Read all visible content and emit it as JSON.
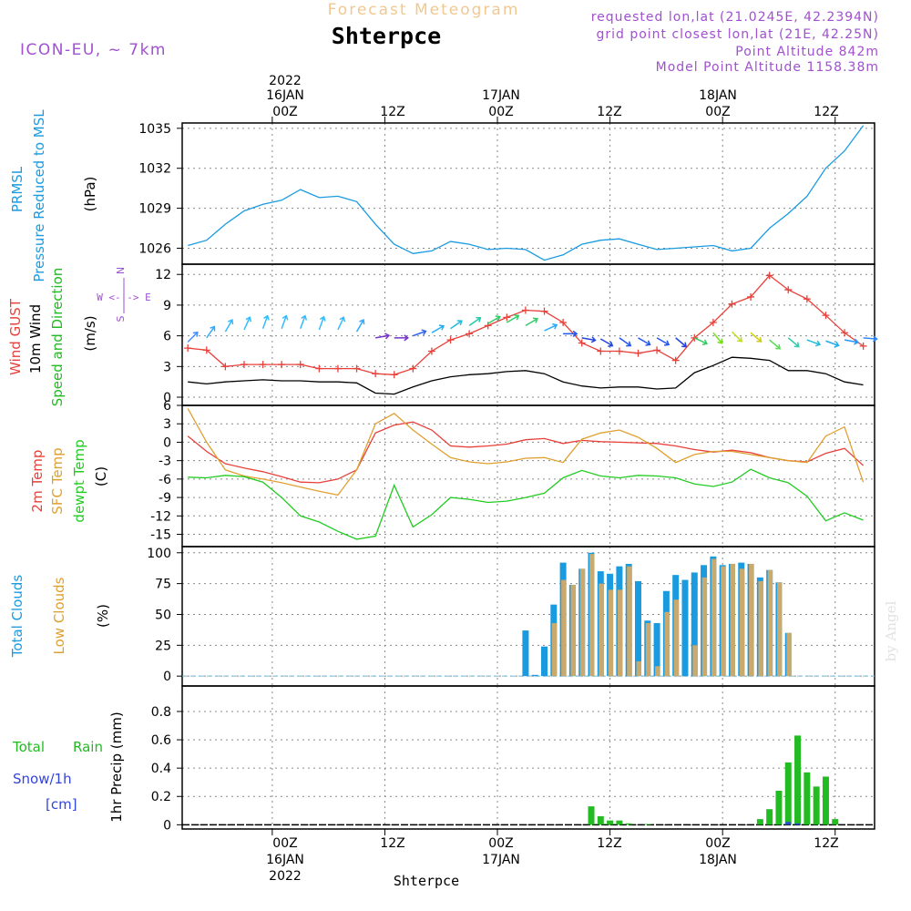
{
  "header": {
    "title": "Forecast Meteogram",
    "location": "Shterpce",
    "model": "ICON-EU, ~ 7km",
    "requested": "requested lon,lat (21.0245E, 42.2394N)",
    "grid_point": "grid point closest lon,lat (21E, 42.25N)",
    "point_altitude": "Point Altitude 842m",
    "model_altitude": "Model Point Altitude 1158.38m",
    "watermark": "by Angel",
    "footer_location": "Shterpce"
  },
  "time_axis": {
    "top_year": "2022",
    "ticks": [
      {
        "line1": "16JAN",
        "line2": "00Z"
      },
      {
        "line1": "",
        "line2": "12Z"
      },
      {
        "line1": "17JAN",
        "line2": "00Z"
      },
      {
        "line1": "",
        "line2": "12Z"
      },
      {
        "line1": "18JAN",
        "line2": "00Z"
      },
      {
        "line1": "",
        "line2": "12Z"
      }
    ],
    "bottom_ticks": [
      {
        "line1": "00Z",
        "line2": "16JAN",
        "line3": "2022"
      },
      {
        "line1": "12Z",
        "line2": "",
        "line3": ""
      },
      {
        "line1": "00Z",
        "line2": "17JAN",
        "line3": ""
      },
      {
        "line1": "12Z",
        "line2": "",
        "line3": ""
      },
      {
        "line1": "00Z",
        "line2": "18JAN",
        "line3": ""
      },
      {
        "line1": "12Z",
        "line2": "",
        "line3": ""
      }
    ]
  },
  "labels": {
    "p1": {
      "a": "PRMSL",
      "b": "Pressure Reduced to MSL",
      "unit": "(hPa)"
    },
    "p2": {
      "a": "Wind GUST",
      "b": "10m Wind",
      "c": "Speed and Direction",
      "unit": "(m/s)",
      "compass_n": "N",
      "compass_s": "S",
      "compass_we": "W <-|-> E"
    },
    "p3": {
      "a": "2m Temp",
      "b": "SFC Temp",
      "c": "dewpt Temp",
      "unit": "(C)"
    },
    "p4": {
      "a": "Total Clouds",
      "b": "Low Clouds",
      "unit": "(%)"
    },
    "p5": {
      "a": "Total",
      "b": "Rain",
      "c": "Snow/1h",
      "d": "[cm]",
      "unit": "1hr Precip (mm)"
    }
  },
  "colors": {
    "pressure": "#1a9be0",
    "gust": "#e8403a",
    "wind": "#000000",
    "t2m": "#e8403a",
    "tsfc": "#e0a030",
    "dewpt": "#22cc22",
    "total_clouds": "#1a9be0",
    "low_clouds": "#c8aa6e",
    "rain": "#22bb22",
    "snow": "#3344dd",
    "title": "#f0c890",
    "info": "#a050d0"
  },
  "chart_data": [
    {
      "type": "line",
      "title": "PRMSL Pressure Reduced to MSL",
      "ylabel": "(hPa)",
      "ylim": [
        1024.8,
        1035.4
      ],
      "yticks": [
        1026,
        1029,
        1032,
        1035
      ],
      "x_hours": [
        -9,
        -7,
        -5,
        -3,
        -1,
        1,
        3,
        5,
        7,
        9,
        11,
        13,
        15,
        17,
        19,
        21,
        23,
        25,
        27,
        29,
        31,
        33,
        35,
        37,
        39,
        41,
        43,
        45,
        47,
        49,
        51,
        53,
        55,
        57,
        59,
        61,
        63
      ],
      "series": [
        {
          "name": "PRMSL",
          "values": [
            1026.2,
            1026.6,
            1027.8,
            1028.8,
            1029.3,
            1029.6,
            1030.4,
            1029.8,
            1029.9,
            1029.5,
            1027.8,
            1026.3,
            1025.6,
            1025.8,
            1026.5,
            1026.3,
            1025.9,
            1026.0,
            1025.9,
            1025.1,
            1025.5,
            1026.3,
            1026.6,
            1026.7,
            1026.3,
            1025.9,
            1026.0,
            1026.1,
            1026.2,
            1025.8,
            1026.0,
            1027.5,
            1028.6,
            1029.9,
            1032.0,
            1033.3,
            1035.2
          ]
        }
      ]
    },
    {
      "type": "line",
      "title": "Wind GUST / 10m Wind Speed and Direction",
      "ylabel": "(m/s)",
      "ylim": [
        -0.8,
        13
      ],
      "yticks": [
        0,
        3,
        6,
        9,
        12
      ],
      "x_hours": [
        -9,
        -7,
        -5,
        -3,
        -1,
        1,
        3,
        5,
        7,
        9,
        11,
        13,
        15,
        17,
        19,
        21,
        23,
        25,
        27,
        29,
        31,
        33,
        35,
        37,
        39,
        41,
        43,
        45,
        47,
        49,
        51,
        53,
        55,
        57,
        59,
        61,
        63
      ],
      "series": [
        {
          "name": "Wind GUST",
          "values": [
            4.8,
            4.6,
            3.0,
            3.2,
            3.2,
            3.2,
            3.2,
            2.8,
            2.8,
            2.8,
            2.3,
            2.2,
            2.8,
            4.5,
            5.6,
            6.2,
            7.0,
            7.8,
            8.5,
            8.4,
            7.3,
            5.3,
            4.5,
            4.5,
            4.3,
            4.6,
            3.6,
            5.8,
            7.3,
            9.1,
            9.8,
            11.9,
            10.5,
            9.6,
            8.0,
            6.3,
            5.0
          ]
        },
        {
          "name": "10m Wind",
          "values": [
            1.5,
            1.3,
            1.5,
            1.6,
            1.7,
            1.6,
            1.6,
            1.5,
            1.5,
            1.4,
            0.4,
            0.3,
            1.0,
            1.6,
            2.0,
            2.2,
            2.3,
            2.5,
            2.6,
            2.3,
            1.5,
            1.1,
            0.9,
            1.0,
            1.0,
            0.8,
            0.9,
            2.4,
            3.1,
            3.9,
            3.8,
            3.6,
            2.6,
            2.6,
            2.3,
            1.5,
            1.2
          ]
        }
      ],
      "wind_arrows": {
        "hours": [
          -9,
          -7,
          -5,
          -3,
          -1,
          1,
          3,
          5,
          7,
          9,
          11,
          13,
          15,
          17,
          19,
          21,
          23,
          25,
          27,
          29,
          31,
          33,
          35,
          37,
          39,
          41,
          43,
          45,
          47,
          49,
          51,
          53,
          55,
          57,
          59,
          61,
          63
        ],
        "speed": [
          5.4,
          5.8,
          6.4,
          6.6,
          6.7,
          6.7,
          6.7,
          6.6,
          6.6,
          6.4,
          5.8,
          5.8,
          6.0,
          6.3,
          6.7,
          7.0,
          7.2,
          7.3,
          7.0,
          6.5,
          6.2,
          5.8,
          5.7,
          5.8,
          5.8,
          5.8,
          5.8,
          5.8,
          6.3,
          6.4,
          6.3,
          5.6,
          5.8,
          5.6,
          5.5,
          5.6,
          5.8
        ],
        "direction_deg": [
          225,
          215,
          210,
          205,
          200,
          200,
          200,
          200,
          205,
          210,
          260,
          270,
          250,
          240,
          235,
          235,
          240,
          240,
          240,
          245,
          270,
          280,
          300,
          305,
          300,
          300,
          310,
          295,
          320,
          315,
          310,
          310,
          310,
          290,
          290,
          280,
          275
        ],
        "colors": [
          "#4a8cff",
          "#33aaff",
          "#33bbff",
          "#33bbff",
          "#33bbff",
          "#33bbff",
          "#33bbff",
          "#33bbff",
          "#33bbff",
          "#33aaff",
          "#7733cc",
          "#7733cc",
          "#3366ee",
          "#22aaff",
          "#22bbdd",
          "#22ccaa",
          "#33cc66",
          "#33cc66",
          "#33cc66",
          "#22aaff",
          "#2255ee",
          "#2244dd",
          "#2244dd",
          "#2255ee",
          "#2255ee",
          "#2255ee",
          "#2244dd",
          "#33cc66",
          "#77dd22",
          "#bbdd22",
          "#cccc11",
          "#55dd55",
          "#33ccaa",
          "#22bbdd",
          "#22aaee",
          "#2299ff",
          "#3388ff"
        ]
      }
    },
    {
      "type": "line",
      "title": "2m Temp / SFC Temp / dewpt Temp",
      "ylabel": "(C)",
      "ylim": [
        -17,
        6
      ],
      "yticks": [
        6,
        3,
        0,
        -3,
        -6,
        -9,
        -12,
        -15
      ],
      "x_hours": [
        -9,
        -7,
        -5,
        -3,
        -1,
        1,
        3,
        5,
        7,
        9,
        11,
        13,
        15,
        17,
        19,
        21,
        23,
        25,
        27,
        29,
        31,
        33,
        35,
        37,
        39,
        41,
        43,
        45,
        47,
        49,
        51,
        53,
        55,
        57,
        59,
        61,
        63
      ],
      "series": [
        {
          "name": "2m Temp",
          "values": [
            1.0,
            -1.5,
            -3.5,
            -4.2,
            -4.8,
            -5.6,
            -6.5,
            -6.6,
            -6.0,
            -4.5,
            1.5,
            2.8,
            3.3,
            2.0,
            -0.6,
            -0.8,
            -0.6,
            -0.3,
            0.4,
            0.6,
            -0.2,
            0.3,
            0.1,
            0.0,
            -0.1,
            -0.2,
            -0.6,
            -1.2,
            -1.6,
            -1.3,
            -1.7,
            -2.5,
            -3.0,
            -3.2,
            -1.8,
            -1.0,
            -3.8
          ]
        },
        {
          "name": "SFC Temp",
          "values": [
            5.5,
            0.0,
            -4.5,
            -5.5,
            -6.0,
            -6.6,
            -7.3,
            -8.0,
            -8.6,
            -4.5,
            3.0,
            4.7,
            2.0,
            -0.3,
            -2.5,
            -3.2,
            -3.5,
            -3.2,
            -2.6,
            -2.5,
            -3.3,
            0.5,
            1.5,
            2.0,
            0.8,
            -1.0,
            -3.3,
            -2.0,
            -1.5,
            -1.5,
            -2.0,
            -2.5,
            -3.0,
            -3.3,
            1.0,
            2.5,
            -6.5
          ]
        },
        {
          "name": "dewpt Temp",
          "values": [
            -5.7,
            -5.8,
            -5.4,
            -5.6,
            -6.5,
            -9.0,
            -12.0,
            -13.0,
            -14.5,
            -15.8,
            -15.3,
            -7.0,
            -13.8,
            -11.8,
            -9.0,
            -9.3,
            -9.8,
            -9.6,
            -9.0,
            -8.3,
            -5.8,
            -4.6,
            -5.5,
            -5.8,
            -5.4,
            -5.5,
            -5.8,
            -6.8,
            -7.2,
            -6.5,
            -4.4,
            -5.8,
            -6.6,
            -8.8,
            -12.8,
            -11.5,
            -12.7
          ]
        }
      ]
    },
    {
      "type": "bar",
      "title": "Total Clouds / Low Clouds",
      "ylabel": "(%)",
      "ylim": [
        -8,
        105
      ],
      "yticks": [
        0,
        25,
        50,
        75,
        100
      ],
      "x_hours": [
        27,
        28,
        29,
        30,
        31,
        32,
        33,
        34,
        35,
        36,
        37,
        38,
        39,
        40,
        41,
        42,
        43,
        44,
        45,
        46,
        47,
        48,
        49,
        50,
        51,
        52,
        53,
        54,
        55,
        56,
        57
      ],
      "series": [
        {
          "name": "Total Clouds",
          "values": [
            37,
            1,
            24,
            58,
            92,
            74,
            87,
            100,
            85,
            83,
            89,
            91,
            77,
            45,
            43,
            69,
            82,
            78,
            84,
            90,
            97,
            90,
            91,
            92,
            91,
            80,
            86,
            76,
            35,
            0,
            0
          ]
        },
        {
          "name": "Low Clouds",
          "values": [
            0,
            0,
            0,
            43,
            78,
            74,
            87,
            99,
            75,
            70,
            70,
            89,
            12,
            43,
            8,
            52,
            62,
            0,
            25,
            80,
            95,
            89,
            91,
            87,
            91,
            77,
            86,
            76,
            35,
            0,
            0
          ]
        }
      ]
    },
    {
      "type": "bar",
      "title": "Total Rain / Snow/1h",
      "ylabel": "1hr Precip (mm)",
      "ylim": [
        -0.03,
        0.98
      ],
      "yticks": [
        0,
        0.2,
        0.4,
        0.6,
        0.8
      ],
      "x_hours": [
        34,
        35,
        36,
        37,
        38,
        39,
        40,
        41,
        52,
        53,
        54,
        55,
        56,
        57,
        58,
        59,
        60,
        61
      ],
      "series": [
        {
          "name": "Total Rain",
          "values": [
            0.13,
            0.06,
            0.03,
            0.03,
            0.01,
            0.0,
            0.005,
            0.0,
            0.04,
            0.11,
            0.24,
            0.44,
            0.63,
            0.37,
            0.27,
            0.34,
            0.04,
            0.0
          ]
        },
        {
          "name": "Snow/1h",
          "values": [
            0,
            0,
            0,
            0,
            0,
            0,
            0,
            0,
            0,
            0,
            0,
            0.02,
            0.01,
            0,
            0,
            0,
            0,
            0
          ]
        }
      ]
    }
  ]
}
